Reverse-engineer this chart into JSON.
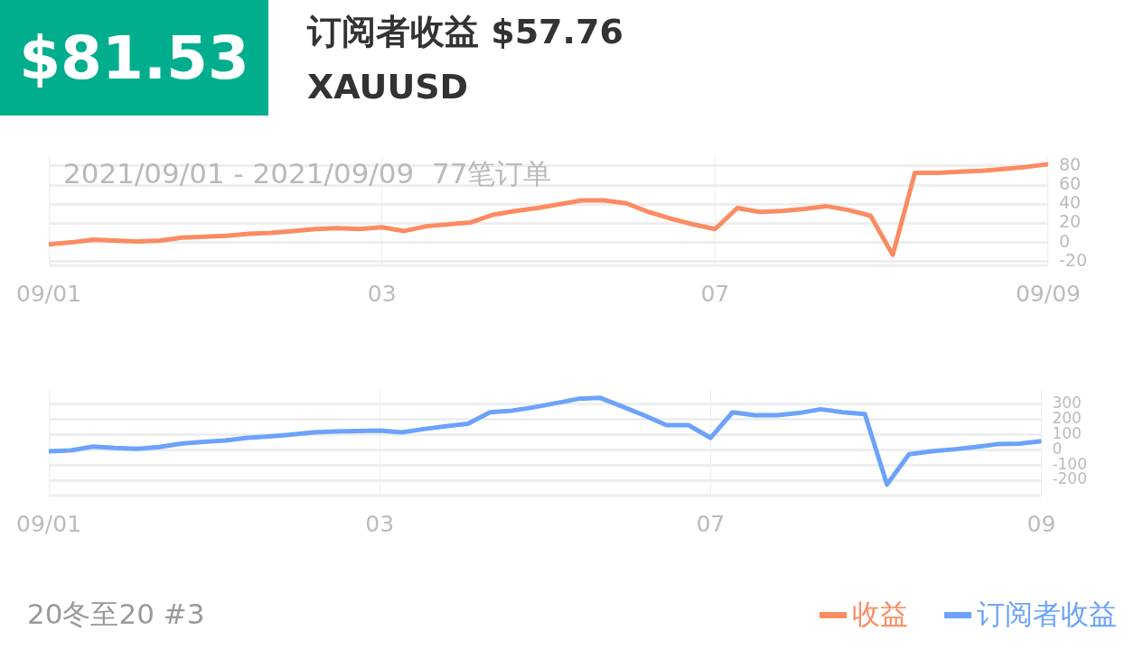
{
  "chart_data": [
    {
      "type": "line",
      "title": "订阅者收益 $57.76",
      "subtitle": "XAUUSD",
      "annotations": [
        "$81.53",
        "2021/09/01 - 2021/09/09  77笔订单",
        "20冬至20 #3"
      ],
      "categories": [
        "09/01",
        null,
        null,
        null,
        null,
        null,
        null,
        null,
        null,
        null,
        null,
        null,
        null,
        null,
        null,
        "03",
        null,
        null,
        null,
        null,
        null,
        null,
        null,
        null,
        null,
        null,
        null,
        null,
        null,
        null,
        "07",
        null,
        null,
        null,
        null,
        null,
        null,
        null,
        null,
        null,
        null,
        null,
        null,
        null,
        null,
        "09/09"
      ],
      "ylim": [
        -24,
        90
      ],
      "yticks": [
        -20,
        0,
        20,
        40,
        60,
        80
      ],
      "grid": true,
      "legend": "bottom right",
      "marker": "none",
      "series": [
        {
          "name": "收益",
          "color": "#fa8c62",
          "values": [
            -2,
            0,
            3,
            2,
            1,
            2,
            5,
            6,
            7,
            9,
            10,
            12,
            14,
            15,
            14,
            16,
            12,
            17,
            19,
            21,
            29,
            33,
            36,
            40,
            44,
            44,
            41,
            32,
            25,
            19,
            14,
            36,
            32,
            33,
            35,
            38,
            34,
            28,
            -13,
            73,
            73,
            74,
            75,
            77,
            79,
            82
          ]
        }
      ]
    },
    {
      "type": "line",
      "categories": [
        "09/01",
        null,
        null,
        null,
        null,
        null,
        null,
        null,
        null,
        null,
        null,
        null,
        null,
        null,
        null,
        "03",
        null,
        null,
        null,
        null,
        null,
        null,
        null,
        null,
        null,
        null,
        null,
        null,
        null,
        null,
        "07",
        null,
        null,
        null,
        null,
        null,
        null,
        null,
        null,
        null,
        null,
        null,
        null,
        null,
        null,
        "09"
      ],
      "ylim": [
        -300,
        390
      ],
      "yticks": [
        -200,
        -100,
        0,
        100,
        200,
        300
      ],
      "grid": true,
      "legend": "bottom right",
      "marker": "none",
      "series": [
        {
          "name": "订阅者收益",
          "color": "#6ca3f9",
          "values": [
            -11,
            -5,
            20,
            11,
            6,
            18,
            40,
            52,
            60,
            78,
            87,
            99,
            113,
            120,
            122,
            125,
            114,
            135,
            154,
            170,
            245,
            256,
            278,
            305,
            333,
            339,
            283,
            224,
            161,
            161,
            78,
            245,
            226,
            226,
            240,
            265,
            245,
            233,
            -228,
            -30,
            -11,
            2,
            18,
            36,
            40,
            56
          ]
        }
      ]
    }
  ]
}
